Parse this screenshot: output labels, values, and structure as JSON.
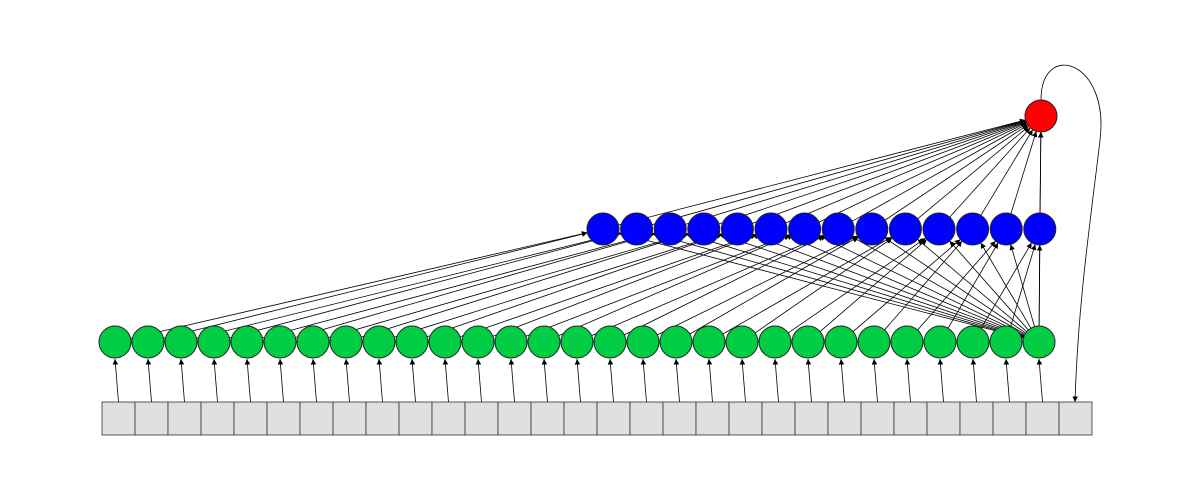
{
  "diagram": {
    "input_cell_count": 30,
    "input_cell_color": "#e0e0e0",
    "layer1": {
      "count": 29,
      "color": "#00cc44"
    },
    "layer2": {
      "count": 14,
      "color": "#0000ff"
    },
    "output": {
      "count": 1,
      "color": "#ff0000"
    },
    "edge_color": "#000000"
  }
}
